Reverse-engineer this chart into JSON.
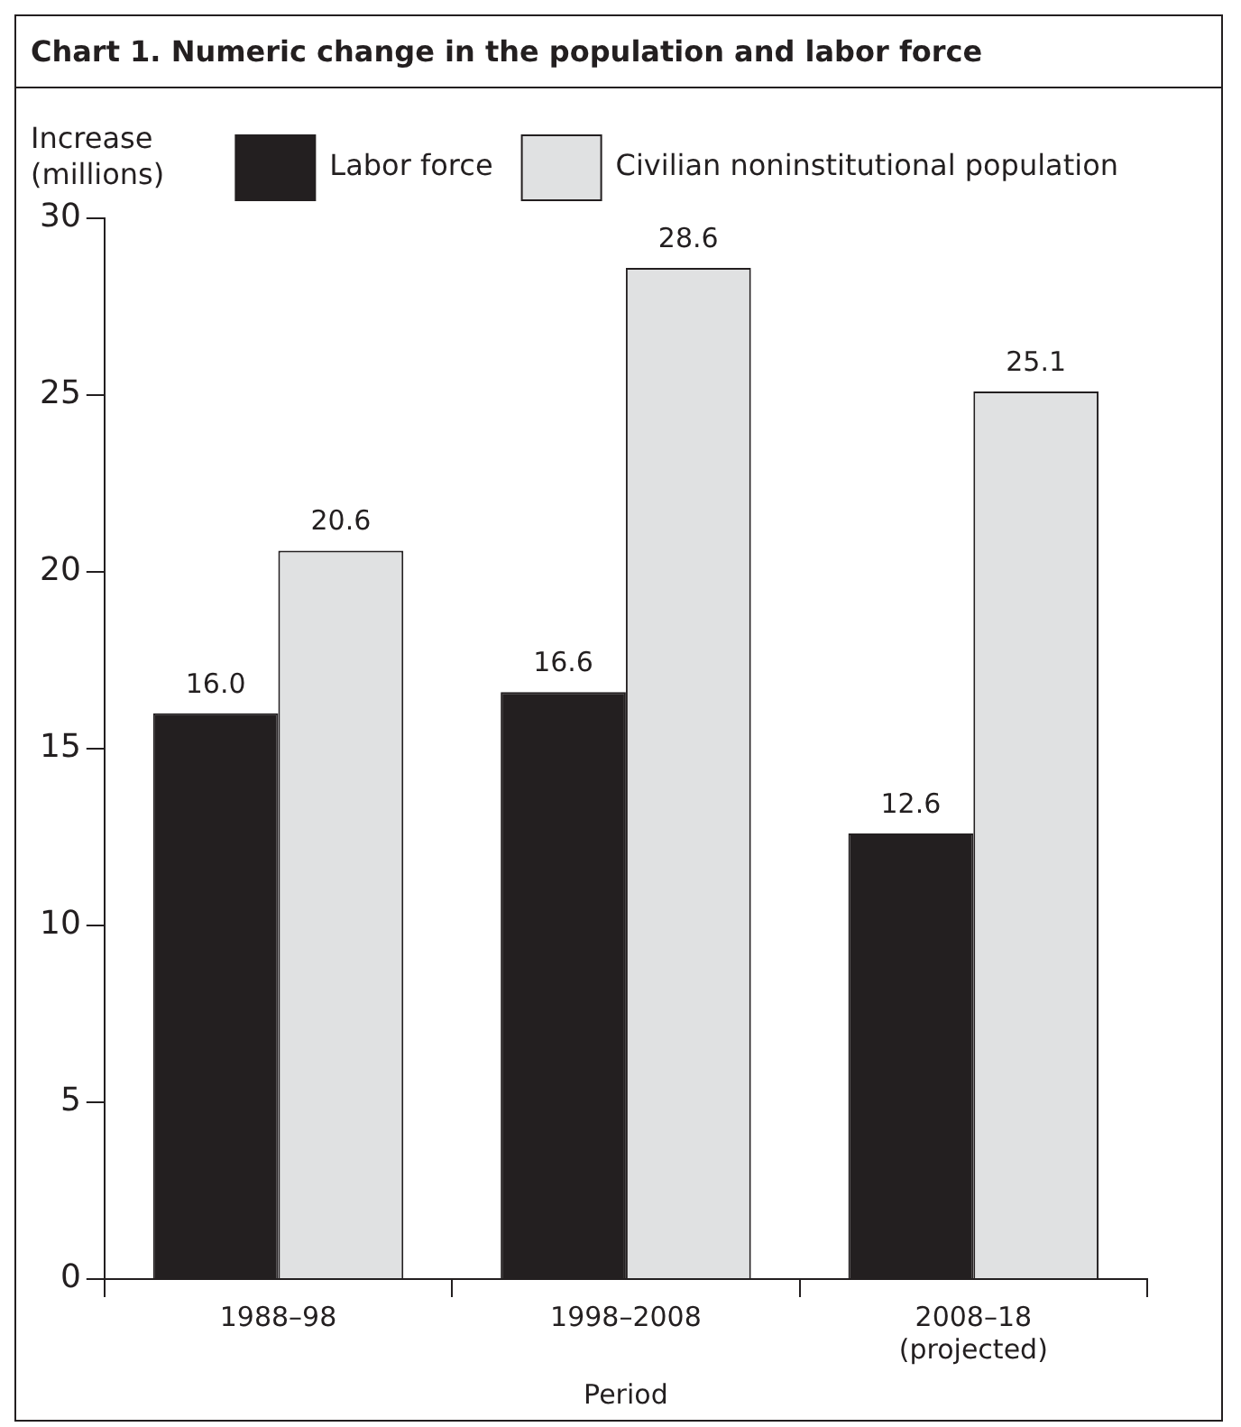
{
  "chart_data": {
    "type": "bar",
    "title": "Chart 1. Numeric change in the population and labor force",
    "xlabel": "Period",
    "ylabel": "Increase\n(millions)",
    "categories": [
      "1988–98",
      "1998–2008",
      "2008–18\n(projected)"
    ],
    "series": [
      {
        "name": "Labor force",
        "color": "#231f20",
        "values": [
          16.0,
          16.6,
          12.6
        ],
        "value_labels": [
          "16.0",
          "16.6",
          "12.6"
        ]
      },
      {
        "name": "Civilian noninstitutional population",
        "color": "#e0e1e2",
        "values": [
          20.6,
          28.6,
          25.1
        ],
        "value_labels": [
          "20.6",
          "28.6",
          "25.1"
        ]
      }
    ],
    "ylim": [
      0,
      30
    ],
    "yticks": [
      0,
      5,
      10,
      15,
      20,
      25,
      30
    ],
    "grid": false,
    "legend": "top right"
  }
}
